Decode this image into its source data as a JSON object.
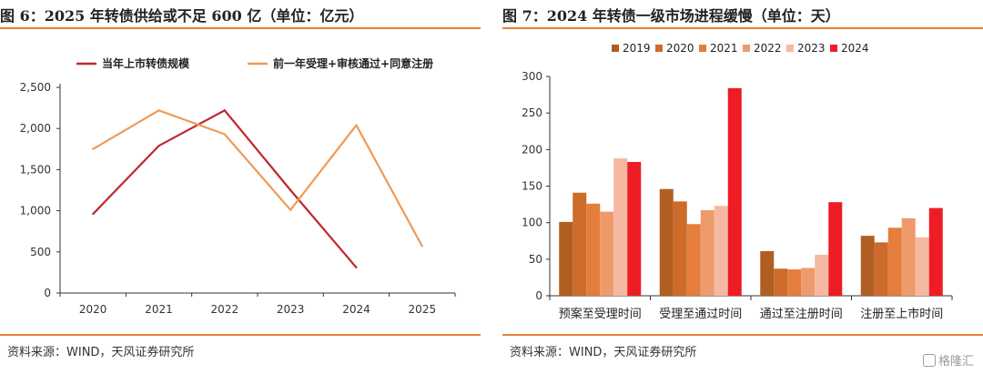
{
  "left": {
    "title": "图 6：2025 年转债供给或不足 600 亿（单位：亿元）",
    "source": "资料来源：WIND，天风证券研究所"
  },
  "right": {
    "title": "图 7：2024 年转债一级市场进程缓慢（单位：天）",
    "source": "资料来源：WIND，天风证券研究所"
  },
  "watermark": "格隆汇",
  "chart_data": [
    {
      "type": "line",
      "title": "2025 年转债供给或不足 600 亿",
      "x": [
        "2020",
        "2021",
        "2022",
        "2023",
        "2024",
        "2025"
      ],
      "ylim": [
        0,
        2500
      ],
      "yticks": [
        0,
        500,
        1000,
        1500,
        2000,
        2500
      ],
      "ytick_labels": [
        "0",
        "500",
        "1,000",
        "1,500",
        "2,000",
        "2,500"
      ],
      "legend": "top",
      "grid": false,
      "series": [
        {
          "name": "当年上市转债规模",
          "color": "#c0282d",
          "values": [
            960,
            1790,
            2220,
            1250,
            310,
            null
          ]
        },
        {
          "name": "前一年受理+审核通过+同意注册",
          "color": "#ef9a55",
          "values": [
            1750,
            2220,
            1930,
            1010,
            2040,
            570
          ]
        }
      ]
    },
    {
      "type": "bar",
      "title": "2024 年转债一级市场进程缓慢",
      "categories": [
        "预案至受理时间",
        "受理至通过时间",
        "通过至注册时间",
        "注册至上市时间"
      ],
      "ylim": [
        0,
        300
      ],
      "yticks": [
        0,
        50,
        100,
        150,
        200,
        250,
        300
      ],
      "legend": "top",
      "grid": false,
      "series": [
        {
          "name": "2019",
          "color": "#b15e23",
          "values": [
            101,
            146,
            61,
            82
          ]
        },
        {
          "name": "2020",
          "color": "#cc6b2a",
          "values": [
            141,
            129,
            37,
            73
          ]
        },
        {
          "name": "2021",
          "color": "#e57d3c",
          "values": [
            126,
            98,
            36,
            93
          ]
        },
        {
          "name": "2022",
          "color": "#ef9a6b",
          "values": [
            115,
            117,
            38,
            106
          ]
        },
        {
          "name": "2023",
          "color": "#f5b9a2",
          "values": [
            188,
            123,
            56,
            80
          ]
        },
        {
          "name": "2024",
          "color": "#ee1c24",
          "values": [
            183,
            284,
            128,
            120
          ]
        }
      ]
    }
  ]
}
